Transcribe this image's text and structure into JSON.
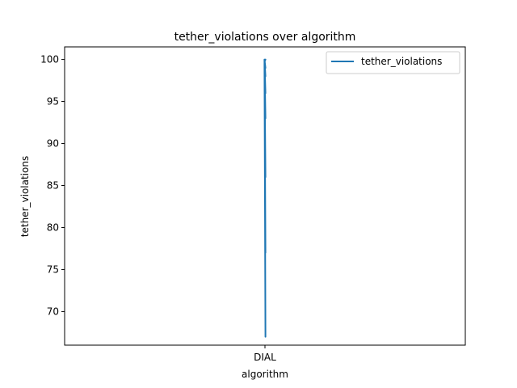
{
  "chart_data": {
    "type": "line",
    "title": "tether_violations over algorithm",
    "xlabel": "algorithm",
    "ylabel": "tether_violations",
    "categories": [
      "DIAL"
    ],
    "x": [
      "DIAL",
      "DIAL",
      "DIAL",
      "DIAL",
      "DIAL",
      "DIAL",
      "DIAL",
      "DIAL",
      "DIAL",
      "DIAL",
      "DIAL",
      "DIAL",
      "DIAL",
      "DIAL",
      "DIAL",
      "DIAL",
      "DIAL"
    ],
    "series": [
      {
        "name": "tether_violations",
        "color": "#1f77b4",
        "values": [
          100,
          67,
          99.5,
          77,
          100,
          86,
          99.8,
          93,
          100,
          96,
          99.9,
          98,
          100,
          99,
          99.7,
          100,
          99.9
        ]
      }
    ],
    "ylim": [
      66,
      101.5
    ],
    "yticks": [
      70,
      75,
      80,
      85,
      90,
      95,
      100
    ],
    "legend": "top-right",
    "grid": false
  }
}
